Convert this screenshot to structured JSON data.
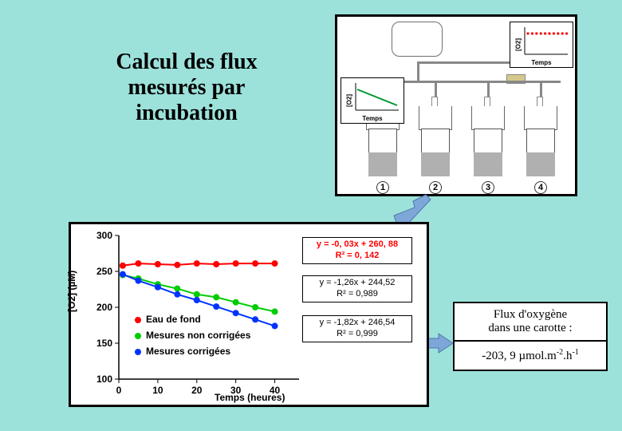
{
  "title": "Calcul des flux mesurés par incubation",
  "mini_charts": {
    "ylabel": "[O2]",
    "xlabel": "Temps",
    "mini1": {
      "dot_color": "#ff0000",
      "line_color": "#ff0000",
      "points_y": [
        10,
        10,
        10,
        10,
        10,
        10,
        10,
        10,
        10,
        10
      ]
    },
    "mini2": {
      "line_color": "#009933",
      "y_start": 10,
      "y_end": 30
    }
  },
  "cores": [
    "1",
    "2",
    "3",
    "4"
  ],
  "main_chart": {
    "xlabel": "Temps (heures)",
    "ylabel": "[O2] (µM)",
    "xlim": [
      0,
      45
    ],
    "ylim": [
      100,
      300
    ],
    "xticks": [
      0,
      10,
      20,
      30,
      40
    ],
    "yticks": [
      100,
      150,
      200,
      250,
      300
    ],
    "background_color": "#ffffff",
    "axis_color": "#000000",
    "tick_fontsize": 12,
    "series": [
      {
        "name": "Eau de fond",
        "color": "#ff0000",
        "points": [
          [
            1,
            258
          ],
          [
            5,
            261
          ],
          [
            10,
            260
          ],
          [
            15,
            259
          ],
          [
            20,
            261
          ],
          [
            25,
            260
          ],
          [
            30,
            261
          ],
          [
            35,
            261
          ],
          [
            40,
            261
          ]
        ]
      },
      {
        "name": "Mesures non corrigées",
        "color": "#00cc00",
        "points": [
          [
            1,
            245
          ],
          [
            5,
            240
          ],
          [
            10,
            232
          ],
          [
            15,
            226
          ],
          [
            20,
            218
          ],
          [
            25,
            214
          ],
          [
            30,
            207
          ],
          [
            35,
            200
          ],
          [
            40,
            194
          ]
        ]
      },
      {
        "name": "Mesures corrigées",
        "color": "#0033ff",
        "points": [
          [
            1,
            246
          ],
          [
            5,
            237
          ],
          [
            10,
            228
          ],
          [
            15,
            218
          ],
          [
            20,
            210
          ],
          [
            25,
            201
          ],
          [
            30,
            192
          ],
          [
            35,
            183
          ],
          [
            40,
            174
          ]
        ]
      }
    ],
    "equations": [
      {
        "text_line1": "y = -0, 03x + 260, 88",
        "text_line2": "R² = 0, 142",
        "color": "#ff0000"
      },
      {
        "text_line1": "y = -1,26x + 244,52",
        "text_line2": "R² = 0,989",
        "color": "#000000"
      },
      {
        "text_line1": "y = -1,82x + 246,54",
        "text_line2": "R² = 0,999",
        "color": "#000000"
      }
    ],
    "legend": [
      {
        "label": "Eau de fond",
        "color": "#ff0000"
      },
      {
        "label": "Mesures non corrigées",
        "color": "#00cc00"
      },
      {
        "label": "Mesures corrigées",
        "color": "#0033ff"
      }
    ]
  },
  "arrow": {
    "fill": "#7da7d9",
    "stroke": "#5176a8"
  },
  "result": {
    "header_line1": "Flux d'oxygène",
    "header_line2": "dans une carotte :",
    "value_prefix": "-203, 9 µmol.m",
    "exp1": "-2",
    "mid": ".h",
    "exp2": "-1"
  }
}
